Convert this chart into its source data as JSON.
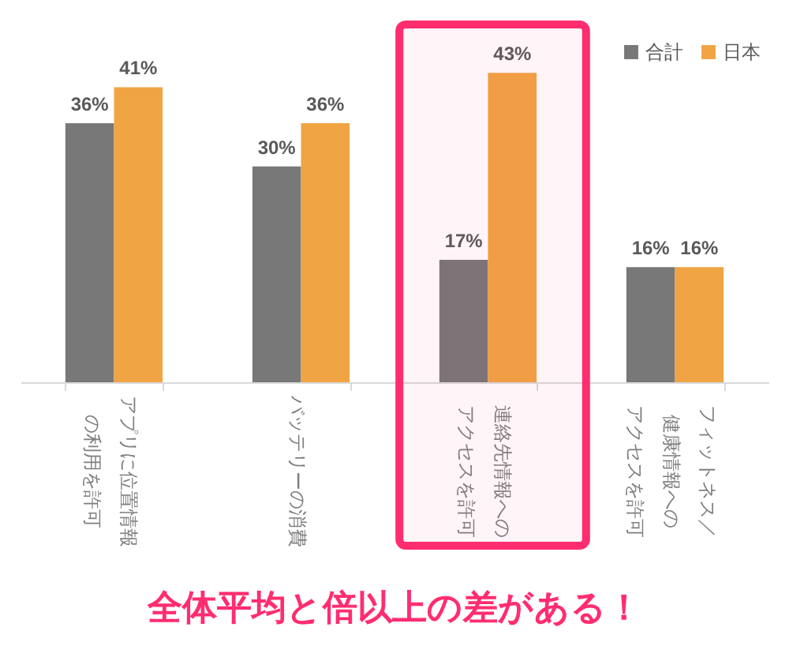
{
  "chart_data": {
    "type": "bar",
    "categories": [
      "アプリに位置情報の利用を許可",
      "バッテリーの消費",
      "連絡先情報へのアクセスを許可",
      "フィットネス／健康情報へのアクセスを許可"
    ],
    "series": [
      {
        "name": "合計",
        "color": "#787878",
        "values": [
          36,
          30,
          17,
          16
        ],
        "value_labels": [
          "36%",
          "30%",
          "17%",
          "16%"
        ]
      },
      {
        "name": "日本",
        "color": "#f0a443",
        "values": [
          41,
          36,
          43,
          16
        ],
        "value_labels": [
          "41%",
          "36%",
          "43%",
          "16%"
        ]
      }
    ],
    "legend": "top right",
    "bands": [
      {
        "axis": "x",
        "from": "連絡先情報へのアクセスを許可",
        "to": "連絡先情報へのアクセスを許可",
        "color": "#ff2d6f"
      }
    ],
    "annotations": [
      "全体平均と倍以上の差がある！"
    ]
  }
}
